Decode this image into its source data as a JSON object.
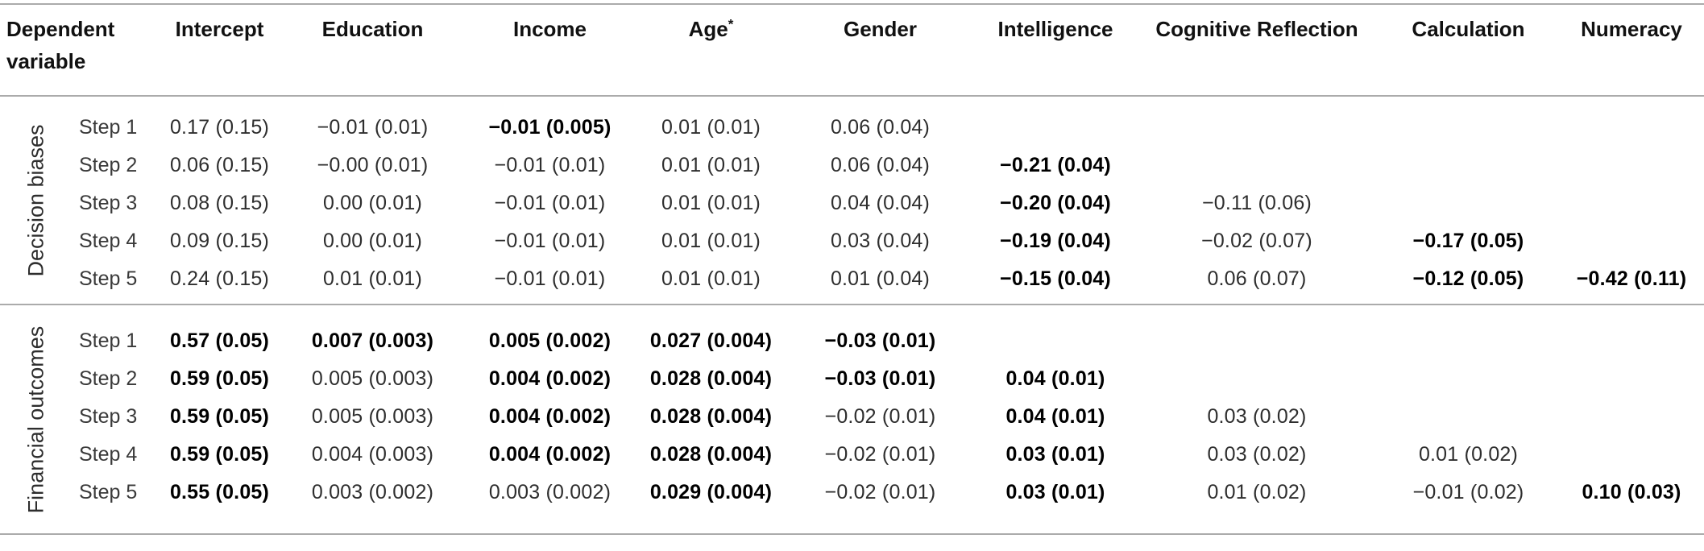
{
  "colors": {
    "rule": "#ababab",
    "text": "#2e2e2e",
    "bold_text": "#000000"
  },
  "table": {
    "headers": [
      {
        "key": "dependent",
        "label": "Dependent variable"
      },
      {
        "key": "intercept",
        "label": "Intercept"
      },
      {
        "key": "education",
        "label": "Education"
      },
      {
        "key": "income",
        "label": "Income"
      },
      {
        "key": "age",
        "label": "Age",
        "sup": "*"
      },
      {
        "key": "gender",
        "label": "Gender"
      },
      {
        "key": "intelligence",
        "label": "Intelligence"
      },
      {
        "key": "cognitive_reflection",
        "label": "Cognitive Reflection"
      },
      {
        "key": "calculation",
        "label": "Calculation"
      },
      {
        "key": "numeracy",
        "label": "Numeracy"
      }
    ],
    "sections": [
      {
        "group_label": "Decision biases",
        "rows": [
          {
            "step": "Step 1",
            "values": [
              {
                "v": "0.17 (0.15)"
              },
              {
                "v": "−0.01 (0.01)"
              },
              {
                "v": "−0.01 (0.005)",
                "b": true
              },
              {
                "v": "0.01 (0.01)"
              },
              {
                "v": "0.06 (0.04)"
              },
              null,
              null,
              null,
              null
            ]
          },
          {
            "step": "Step 2",
            "values": [
              {
                "v": "0.06 (0.15)"
              },
              {
                "v": "−0.00 (0.01)"
              },
              {
                "v": "−0.01 (0.01)"
              },
              {
                "v": "0.01 (0.01)"
              },
              {
                "v": "0.06 (0.04)"
              },
              {
                "v": "−0.21 (0.04)",
                "b": true
              },
              null,
              null,
              null
            ]
          },
          {
            "step": "Step 3",
            "values": [
              {
                "v": "0.08 (0.15)"
              },
              {
                "v": "0.00 (0.01)"
              },
              {
                "v": "−0.01 (0.01)"
              },
              {
                "v": "0.01 (0.01)"
              },
              {
                "v": "0.04 (0.04)"
              },
              {
                "v": "−0.20 (0.04)",
                "b": true
              },
              {
                "v": "−0.11 (0.06)"
              },
              null,
              null
            ]
          },
          {
            "step": "Step 4",
            "values": [
              {
                "v": "0.09 (0.15)"
              },
              {
                "v": "0.00 (0.01)"
              },
              {
                "v": "−0.01 (0.01)"
              },
              {
                "v": "0.01 (0.01)"
              },
              {
                "v": "0.03 (0.04)"
              },
              {
                "v": "−0.19 (0.04)",
                "b": true
              },
              {
                "v": "−0.02 (0.07)"
              },
              {
                "v": "−0.17 (0.05)",
                "b": true
              },
              null
            ]
          },
          {
            "step": "Step 5",
            "values": [
              {
                "v": "0.24 (0.15)"
              },
              {
                "v": "0.01 (0.01)"
              },
              {
                "v": "−0.01 (0.01)"
              },
              {
                "v": "0.01 (0.01)"
              },
              {
                "v": "0.01 (0.04)"
              },
              {
                "v": "−0.15 (0.04)",
                "b": true
              },
              {
                "v": "0.06 (0.07)"
              },
              {
                "v": "−0.12 (0.05)",
                "b": true
              },
              {
                "v": "−0.42 (0.11)",
                "b": true
              }
            ]
          }
        ]
      },
      {
        "group_label": "Financial outcomes",
        "rows": [
          {
            "step": "Step 1",
            "values": [
              {
                "v": "0.57 (0.05)",
                "b": true
              },
              {
                "v": "0.007 (0.003)",
                "b": true
              },
              {
                "v": "0.005 (0.002)",
                "b": true
              },
              {
                "v": "0.027 (0.004)",
                "b": true
              },
              {
                "v": "−0.03 (0.01)",
                "b": true
              },
              null,
              null,
              null,
              null
            ]
          },
          {
            "step": "Step 2",
            "values": [
              {
                "v": "0.59 (0.05)",
                "b": true
              },
              {
                "v": "0.005 (0.003)"
              },
              {
                "v": "0.004 (0.002)",
                "b": true
              },
              {
                "v": "0.028 (0.004)",
                "b": true
              },
              {
                "v": "−0.03 (0.01)",
                "b": true
              },
              {
                "v": "0.04 (0.01)",
                "b": true
              },
              null,
              null,
              null
            ]
          },
          {
            "step": "Step 3",
            "values": [
              {
                "v": "0.59 (0.05)",
                "b": true
              },
              {
                "v": "0.005 (0.003)"
              },
              {
                "v": "0.004 (0.002)",
                "b": true
              },
              {
                "v": "0.028 (0.004)",
                "b": true
              },
              {
                "v": "−0.02 (0.01)"
              },
              {
                "v": "0.04 (0.01)",
                "b": true
              },
              {
                "v": "0.03 (0.02)"
              },
              null,
              null
            ]
          },
          {
            "step": "Step 4",
            "values": [
              {
                "v": "0.59 (0.05)",
                "b": true
              },
              {
                "v": "0.004 (0.003)"
              },
              {
                "v": "0.004 (0.002)",
                "b": true
              },
              {
                "v": "0.028 (0.004)",
                "b": true
              },
              {
                "v": "−0.02 (0.01)"
              },
              {
                "v": "0.03 (0.01)",
                "b": true
              },
              {
                "v": "0.03 (0.02)"
              },
              {
                "v": "0.01 (0.02)"
              },
              null
            ]
          },
          {
            "step": "Step 5",
            "values": [
              {
                "v": "0.55 (0.05)",
                "b": true
              },
              {
                "v": "0.003 (0.002)"
              },
              {
                "v": "0.003 (0.002)"
              },
              {
                "v": "0.029 (0.004)",
                "b": true
              },
              {
                "v": "−0.02 (0.01)"
              },
              {
                "v": "0.03 (0.01)",
                "b": true
              },
              {
                "v": "0.01 (0.02)"
              },
              {
                "v": "−0.01 (0.02)"
              },
              {
                "v": "0.10 (0.03)",
                "b": true
              }
            ]
          }
        ]
      }
    ]
  }
}
